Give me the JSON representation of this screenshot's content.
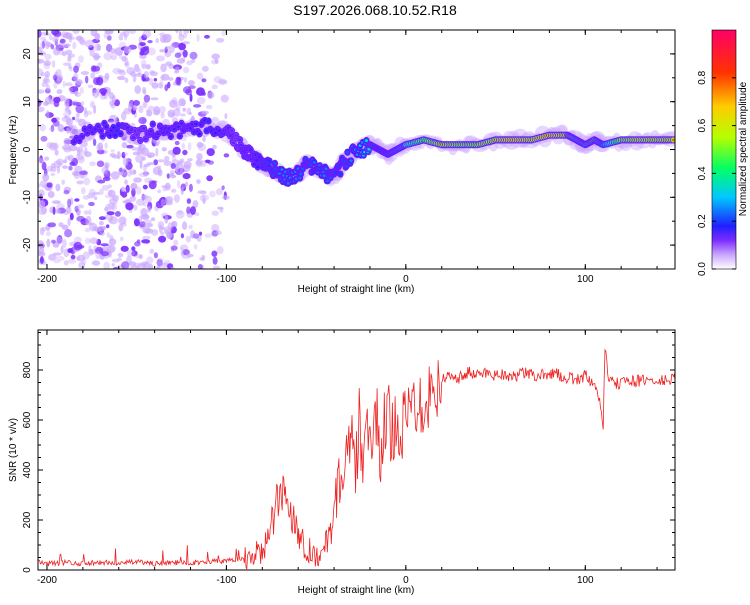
{
  "title": "S197.2026.068.10.52.R18",
  "colors": {
    "snr_line": "#ee2222",
    "ridge_low": "#2a1cff",
    "ridge_high": "#ff1a1a",
    "scatter": "#a77bf0"
  },
  "chart_data": [
    {
      "type": "heatmap",
      "name": "spectrogram",
      "xlabel": "Height of straight line (km)",
      "ylabel": "Frequency (Hz)",
      "xlim": [
        -205,
        150
      ],
      "ylim": [
        -25,
        25
      ],
      "xticks": [
        -200,
        -100,
        0,
        100
      ],
      "yticks": [
        -20,
        -10,
        0,
        10,
        20
      ],
      "xtick_labels": [
        "-200",
        "-100",
        "0",
        "100"
      ],
      "ytick_labels": [
        "-20",
        "-10",
        "0",
        "10",
        "20"
      ],
      "colorbar": {
        "label": "Normalized spectral amplitude",
        "range": [
          0,
          1
        ],
        "ticks": [
          0.0,
          0.2,
          0.4,
          0.6,
          0.8
        ],
        "tick_labels": [
          "0.0",
          "0.2",
          "0.4",
          "0.6",
          "0.8"
        ],
        "colormap": [
          "#ffffff",
          "#c9a6ff",
          "#7b2cff",
          "#1f1fff",
          "#00c8ff",
          "#00ff66",
          "#b4ff00",
          "#ffcc00",
          "#ff3300",
          "#ff0066"
        ]
      },
      "ridge": {
        "x": [
          -185,
          -170,
          -160,
          -150,
          -140,
          -130,
          -120,
          -110,
          -100,
          -95,
          -90,
          -85,
          -80,
          -75,
          -70,
          -65,
          -60,
          -55,
          -50,
          -45,
          -40,
          -35,
          -30,
          -25,
          -20,
          -15,
          -10,
          -5,
          0,
          10,
          20,
          30,
          40,
          50,
          60,
          70,
          80,
          90,
          95,
          100,
          105,
          110,
          120,
          130,
          140,
          150
        ],
        "frequency": [
          3,
          4,
          4,
          3,
          4,
          4,
          4,
          5,
          4,
          2,
          0,
          -2,
          -3,
          -4,
          -5,
          -6,
          -5,
          -3,
          -4,
          -5,
          -6,
          -3,
          -1,
          0,
          1,
          0,
          -1,
          0,
          1,
          2,
          1,
          1,
          1,
          2,
          2,
          2,
          3,
          3,
          2,
          1,
          2,
          1,
          2,
          2,
          2,
          2
        ],
        "amplitude": [
          0.3,
          0.3,
          0.35,
          0.25,
          0.3,
          0.3,
          0.3,
          0.35,
          0.3,
          0.25,
          0.3,
          0.3,
          0.35,
          0.35,
          0.4,
          0.4,
          0.4,
          0.35,
          0.4,
          0.4,
          0.35,
          0.35,
          0.4,
          0.45,
          0.5,
          0.45,
          0.5,
          0.55,
          0.6,
          0.75,
          0.85,
          0.8,
          0.8,
          0.85,
          0.9,
          0.85,
          0.9,
          0.85,
          0.6,
          0.7,
          0.8,
          0.5,
          0.8,
          0.85,
          0.85,
          0.85
        ]
      },
      "noise_region": {
        "x_range": [
          -205,
          -95
        ],
        "frequency_range": [
          -25,
          25
        ],
        "amplitude": 0.1
      }
    },
    {
      "type": "line",
      "name": "snr",
      "xlabel": "Height of straight line (km)",
      "ylabel": "SNR (10 * v/v)",
      "xlim": [
        -205,
        150
      ],
      "ylim": [
        0,
        960
      ],
      "xticks": [
        -200,
        -100,
        0,
        100
      ],
      "yticks": [
        0,
        200,
        400,
        600,
        800
      ],
      "xtick_labels": [
        "-200",
        "-100",
        "0",
        "100"
      ],
      "ytick_labels": [
        "0",
        "200",
        "400",
        "600",
        "800"
      ],
      "x": [
        -205,
        -200,
        -190,
        -180,
        -170,
        -160,
        -150,
        -140,
        -130,
        -120,
        -110,
        -100,
        -95,
        -90,
        -85,
        -80,
        -76,
        -72,
        -68,
        -65,
        -62,
        -58,
        -54,
        -50,
        -46,
        -42,
        -39,
        -36,
        -33,
        -30,
        -28,
        -26,
        -24,
        -22,
        -20,
        -18,
        -16,
        -14,
        -12,
        -10,
        -8,
        -6,
        -4,
        -2,
        0,
        2,
        4,
        6,
        8,
        10,
        12,
        14,
        16,
        18,
        20,
        25,
        30,
        35,
        40,
        45,
        50,
        55,
        60,
        65,
        70,
        75,
        80,
        85,
        90,
        95,
        100,
        104,
        107,
        109,
        110,
        111,
        113,
        116,
        120,
        125,
        130,
        135,
        140,
        145,
        150
      ],
      "y": [
        30,
        25,
        30,
        25,
        30,
        28,
        32,
        25,
        30,
        28,
        35,
        35,
        40,
        45,
        55,
        80,
        140,
        260,
        320,
        250,
        200,
        120,
        80,
        60,
        70,
        150,
        300,
        380,
        440,
        500,
        380,
        600,
        420,
        520,
        560,
        500,
        600,
        450,
        580,
        620,
        540,
        600,
        600,
        580,
        590,
        640,
        660,
        680,
        680,
        700,
        690,
        720,
        740,
        750,
        760,
        780,
        770,
        790,
        780,
        790,
        780,
        785,
        770,
        790,
        780,
        775,
        790,
        780,
        770,
        760,
        780,
        740,
        700,
        640,
        580,
        900,
        760,
        740,
        750,
        760,
        755,
        760,
        750,
        760,
        760
      ]
    }
  ]
}
